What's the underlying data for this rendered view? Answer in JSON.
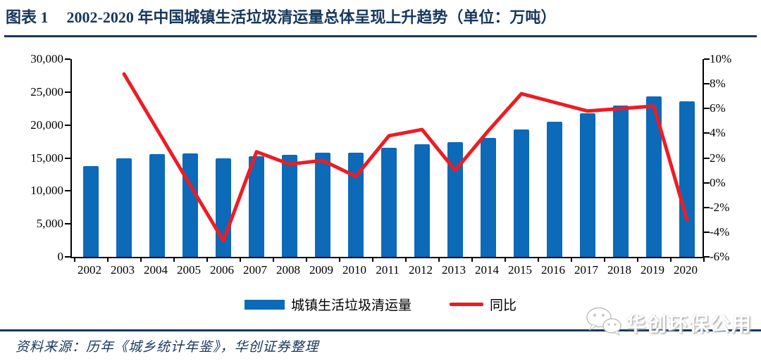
{
  "header": {
    "figure_label": "图表 1",
    "title": "2002-2020 年中国城镇生活垃圾清运量总体呈现上升趋势（单位：万吨）"
  },
  "chart_data": {
    "type": "bar",
    "title": "2002-2020 年中国城镇生活垃圾清运量总体呈现上升趋势",
    "unit": "万吨",
    "categories": [
      "2002",
      "2003",
      "2004",
      "2005",
      "2006",
      "2007",
      "2008",
      "2009",
      "2010",
      "2011",
      "2012",
      "2013",
      "2014",
      "2015",
      "2016",
      "2017",
      "2018",
      "2019",
      "2020"
    ],
    "series": [
      {
        "name": "城镇生活垃圾清运量",
        "type": "bar",
        "axis": "left",
        "color": "#0C6AB8",
        "values": [
          13750,
          14900,
          15550,
          15650,
          14900,
          15250,
          15500,
          15800,
          15850,
          16500,
          17100,
          17400,
          18000,
          19300,
          20500,
          21750,
          23000,
          24400,
          23650
        ]
      },
      {
        "name": "同比",
        "type": "line",
        "axis": "right",
        "color": "#ED1C24",
        "values": [
          null,
          8.8,
          4.3,
          -0.2,
          -4.7,
          2.5,
          1.5,
          1.8,
          0.5,
          3.8,
          4.3,
          1.0,
          4.2,
          7.2,
          6.5,
          5.8,
          6.0,
          6.2,
          -3.0
        ]
      }
    ],
    "left_axis": {
      "min": 0,
      "max": 30000,
      "tick_step": 5000,
      "tick_labels": [
        "30,000",
        "25,000",
        "20,000",
        "15,000",
        "10,000",
        "5,000",
        "0"
      ]
    },
    "right_axis": {
      "min": -6,
      "max": 10,
      "tick_step": 2,
      "tick_labels": [
        "10%",
        "8%",
        "6%",
        "4%",
        "2%",
        "0%",
        "-2%",
        "-4%",
        "-6%"
      ]
    },
    "grid": "off",
    "legend_position": "bottom"
  },
  "legend": {
    "bar_label": "城镇生活垃圾清运量",
    "line_label": "同比"
  },
  "footer": {
    "source": "资料来源：历年《城乡统计年鉴》，华创证券整理",
    "watermark": "华创环保公用"
  },
  "colors": {
    "accent_navy": "#17375D",
    "bar_blue": "#0C6AB8",
    "line_red": "#ED1C24"
  }
}
